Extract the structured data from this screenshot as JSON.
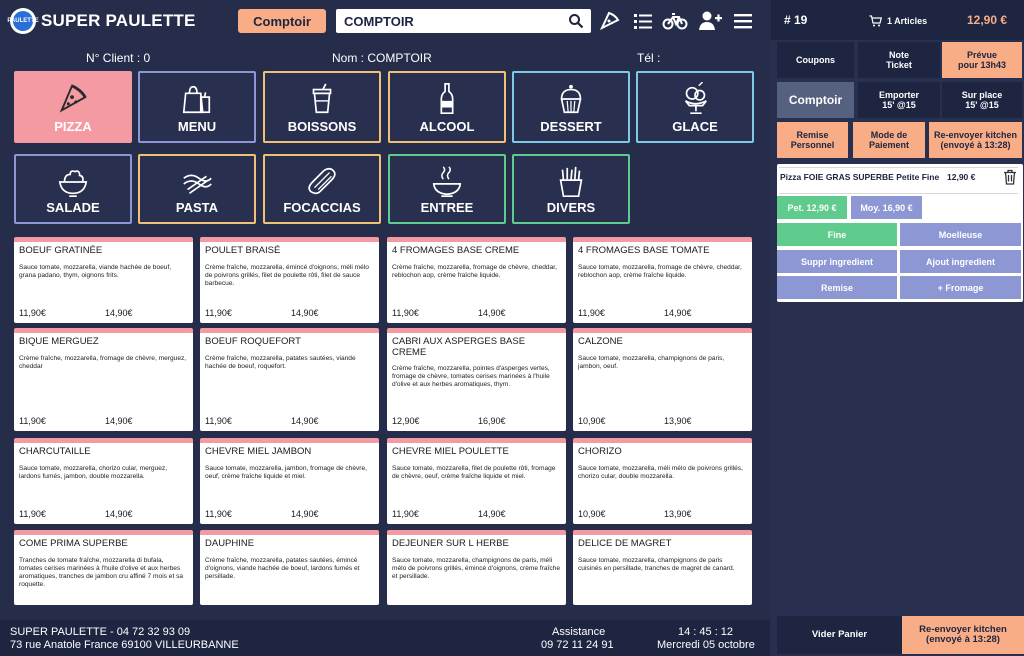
{
  "header": {
    "logo_text": "PAULETTE",
    "brand": "SUPER PAULETTE",
    "comptoir_button": "Comptoir",
    "search_value": "COMPTOIR",
    "icons": [
      "pizza-slice-icon",
      "list-icon",
      "bicycle-icon",
      "add-user-icon",
      "menu-icon"
    ]
  },
  "client": {
    "number": "N° Client : 0",
    "name": "Nom : COMPTOIR",
    "phone": "Tél :"
  },
  "categories": [
    {
      "label": "PIZZA",
      "icon": "pizza-icon",
      "color": "#f49aa2",
      "active": true
    },
    {
      "label": "MENU",
      "icon": "shopping-bag-icon",
      "color": "#8d97d3"
    },
    {
      "label": "BOISSONS",
      "icon": "drink-cup-icon",
      "color": "#f0c078"
    },
    {
      "label": "ALCOOL",
      "icon": "bottle-icon",
      "color": "#f0c078"
    },
    {
      "label": "DESSERT",
      "icon": "cupcake-icon",
      "color": "#7fc8e8"
    },
    {
      "label": "GLACE",
      "icon": "ice-cream-icon",
      "color": "#7fc8e8"
    },
    {
      "label": "SALADE",
      "icon": "salad-icon",
      "color": "#8d97d3"
    },
    {
      "label": "PASTA",
      "icon": "pasta-icon",
      "color": "#f0c078"
    },
    {
      "label": "FOCACCIAS",
      "icon": "sandwich-icon",
      "color": "#f0c078"
    },
    {
      "label": "ENTREE",
      "icon": "soup-bowl-icon",
      "color": "#5fcb8c"
    },
    {
      "label": "DIVERS",
      "icon": "fries-icon",
      "color": "#5fcb8c"
    }
  ],
  "products": [
    {
      "name": "BOEUF GRATINÉE",
      "desc": "Sauce tomate, mozzarella, viande hachée de boeuf, grana padano, thym, oignons frits.",
      "p1": "11,90€",
      "p2": "14,90€"
    },
    {
      "name": "POULET BRAISÉ",
      "desc": "Crème fraîche, mozzarella, émincé d'oignons, méli mélo de poivrons grillés, filet de poulette rôti, filet de sauce barbecue.",
      "p1": "11,90€",
      "p2": "14,90€"
    },
    {
      "name": "4 FROMAGES BASE CREME",
      "desc": "Crème fraîche, mozzarella, fromage de chèvre, cheddar, reblochon aop, crème fraîche liquide.",
      "p1": "11,90€",
      "p2": "14,90€"
    },
    {
      "name": "4 FROMAGES BASE TOMATE",
      "desc": "Sauce tomate, mozzarella, fromage de chèvre, cheddar, reblochon aop, crème fraîche liquide.",
      "p1": "11,90€",
      "p2": "14,90€"
    },
    {
      "name": "BIQUE MERGUEZ",
      "desc": "Crème fraîche, mozzarella, fromage de chèvre, merguez, cheddar",
      "p1": "11,90€",
      "p2": "14,90€"
    },
    {
      "name": "BOEUF ROQUEFORT",
      "desc": "Crème fraîche, mozzarella, patates sautées, viande hachée de boeuf, roquefort.",
      "p1": "11,90€",
      "p2": "14,90€"
    },
    {
      "name": "CABRI AUX ASPERGES BASE CREME",
      "desc": "Crème fraîche, mozzarella, pointes d'asperges vertes, fromage de chèvre, tomates cerises marinées à l'huile d'olive et aux herbes aromatiques, thym.",
      "p1": "12,90€",
      "p2": "16,90€"
    },
    {
      "name": "CALZONE",
      "desc": "Sauce tomate, mozzarella, champignons de paris, jambon, oeuf.",
      "p1": "10,90€",
      "p2": "13,90€"
    },
    {
      "name": "CHARCUTAILLE",
      "desc": "Sauce tomate, mozzarella, chorizo cular, merguez, lardons fumés, jambon, double mozzarella.",
      "p1": "11,90€",
      "p2": "14,90€"
    },
    {
      "name": "CHEVRE MIEL JAMBON",
      "desc": "Sauce tomate, mozzarella, jambon, fromage de chèvre, oeuf, crème fraîche liquide et miel.",
      "p1": "11,90€",
      "p2": "14,90€"
    },
    {
      "name": "CHEVRE MIEL POULETTE",
      "desc": "Sauce tomate, mozzarella, filet de poulette rôti, fromage de chèvre, oeuf, crème fraîche liquide et miel.",
      "p1": "11,90€",
      "p2": "14,90€"
    },
    {
      "name": "CHORIZO",
      "desc": "Sauce tomate, mozzarella, méli mélo de poivrons grillés, chorizo cular, double mozzarella.",
      "p1": "10,90€",
      "p2": "13,90€"
    },
    {
      "name": "COME PRIMA SUPERBE",
      "desc": "Tranches de tomate fraîche, mozzarella di bufala, tomates cerises marinées à l'huile d'olive et aux herbes aromatiques, tranches de jambon cru affiné 7 mois et sa roquette.",
      "p1": "",
      "p2": ""
    },
    {
      "name": "DAUPHINE",
      "desc": "Crème fraîche, mozzarella, patates sautées, émincé d'oignons, viande hachée de boeuf, lardons fumés et persillade.",
      "p1": "",
      "p2": ""
    },
    {
      "name": "DEJEUNER SUR L HERBE",
      "desc": "Sauce tomate, mozzarella, champignons de paris, méli mélo de poivrons grillés, émincé d'oignons, crème fraîche et persillade.",
      "p1": "",
      "p2": ""
    },
    {
      "name": "DELICE DE MAGRET",
      "desc": "Sauce tomate, mozzarella, champignons de paris cuisinés en persillade, tranches de magret de canard.",
      "p1": "",
      "p2": ""
    }
  ],
  "footer": {
    "shop": "SUPER PAULETTE - 04 72 32 93 09",
    "address": "73 rue Anatole France 69100 VILLEURBANNE",
    "assistance_label": "Assistance",
    "assistance_phone": "09 72 11 24 91",
    "time": "14 : 45 : 12",
    "date": "Mercredi 05 octobre"
  },
  "panel": {
    "order_number": "# 19",
    "articles": "1 Articles",
    "total": "12,90 €",
    "coupons": "Coupons",
    "note_ticket": "Note Ticket",
    "prevue": "Prévue pour 13h43",
    "comptoir": "Comptoir",
    "emporter": "Emporter 15' @15",
    "sur_place": "Sur place 15' @15",
    "remise_perso": "Remise Personnel",
    "mode_paiement": "Mode de Paiement",
    "renvoyer": "Re-envoyer kitchen (envoyé à 13:28)",
    "item_name": "Pizza FOIE GRAS SUPERBE Petite Fine",
    "item_price": "12,90 €",
    "size_pet": "Pet. 12,90 €",
    "size_moy": "Moy. 16,90 €",
    "opt_fine": "Fine",
    "opt_moelleuse": "Moelleuse",
    "opt_suppr": "Suppr ingredient",
    "opt_ajout": "Ajout ingredient",
    "opt_remise": "Remise",
    "opt_fromage": "+ Fromage",
    "vider": "Vider Panier",
    "renvoyer_bottom": "Re-envoyer kitchen (envoyé à 13:28)"
  }
}
